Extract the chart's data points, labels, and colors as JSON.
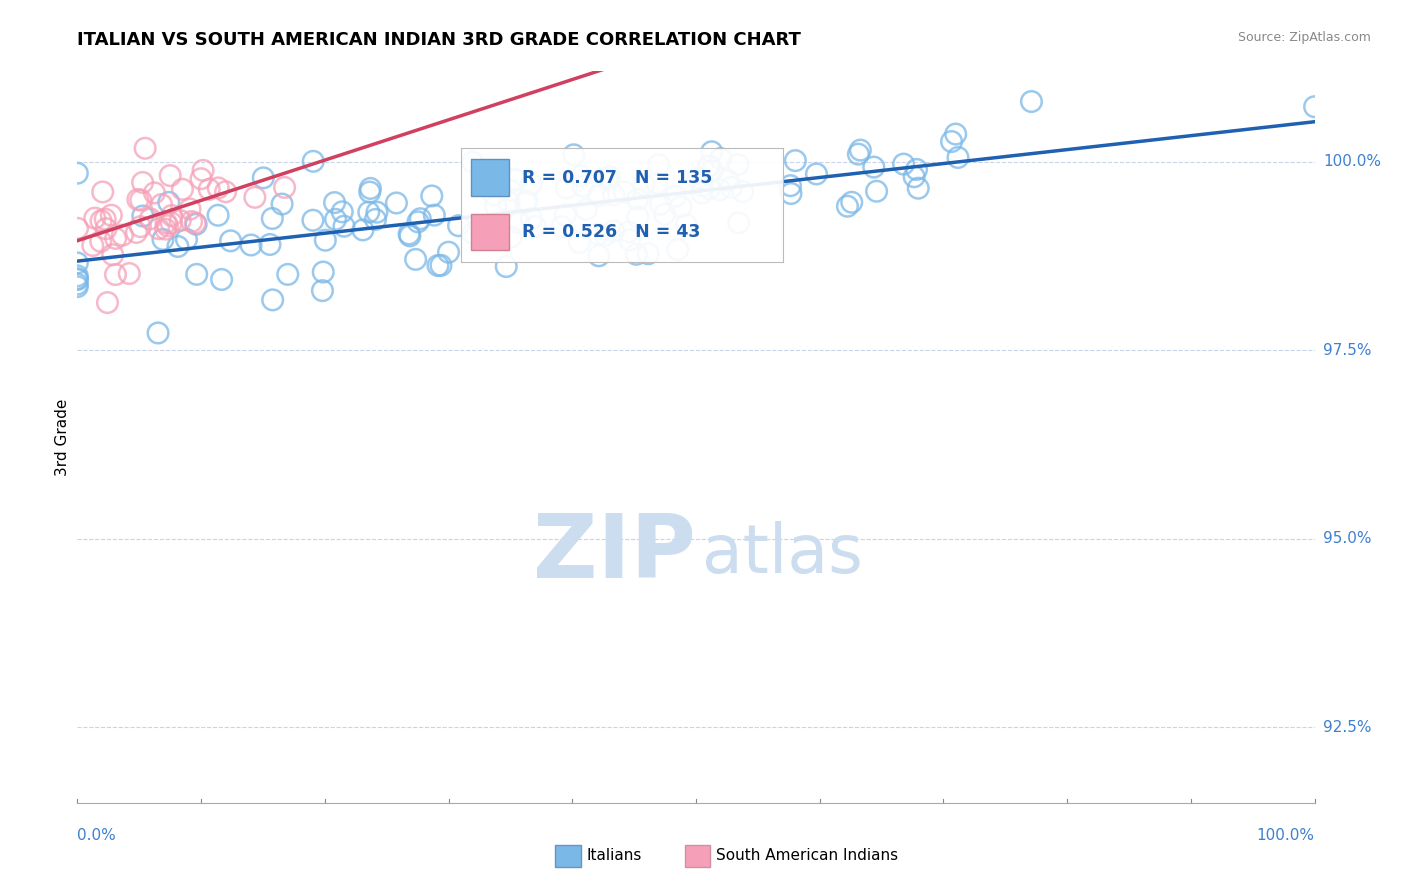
{
  "title": "ITALIAN VS SOUTH AMERICAN INDIAN 3RD GRADE CORRELATION CHART",
  "source": "Source: ZipAtlas.com",
  "ylabel": "3rd Grade",
  "xlim": [
    0.0,
    100.0
  ],
  "ylim": [
    91.5,
    101.2
  ],
  "yticks": [
    92.5,
    95.0,
    97.5,
    100.0
  ],
  "ytick_labels": [
    "92.5%",
    "95.0%",
    "97.5%",
    "100.0%"
  ],
  "watermark_zip": "ZIP",
  "watermark_atlas": "atlas",
  "blue_color": "#7ab8e8",
  "blue_line_color": "#2060b0",
  "pink_color": "#f5a0b8",
  "pink_line_color": "#d04060",
  "blue_r": 0.707,
  "blue_n": 135,
  "pink_r": 0.526,
  "pink_n": 43,
  "title_fontsize": 13,
  "axis_label_color": "#4080d0",
  "watermark_color": "#ccddf0",
  "background_color": "#ffffff",
  "grid_color": "#c8d4e8",
  "seed": 42
}
